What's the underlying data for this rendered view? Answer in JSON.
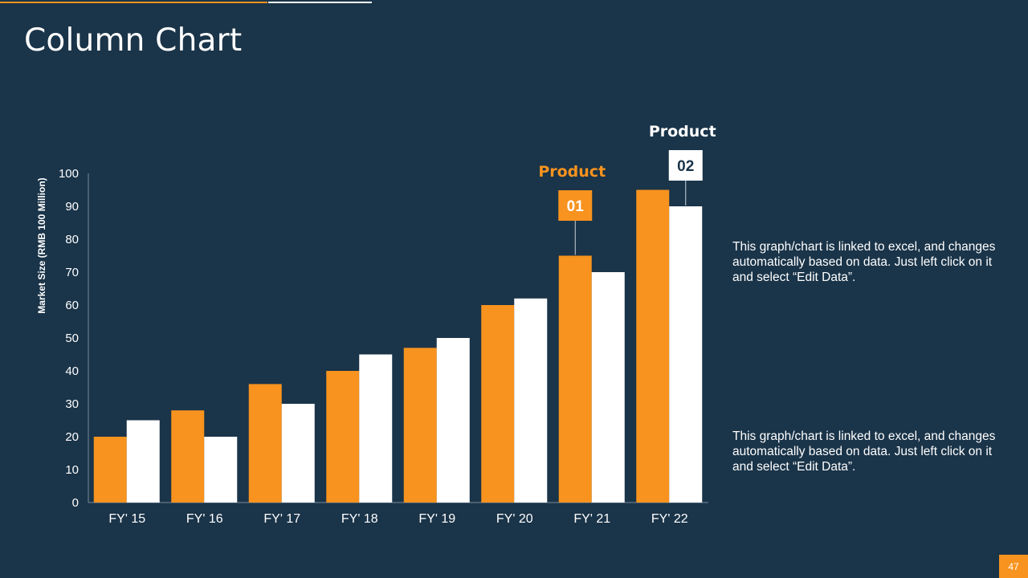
{
  "slide": {
    "title": "Column Chart",
    "page_number": "47"
  },
  "colors": {
    "background": "#1a3449",
    "product_01": "#f7931e",
    "product_02": "#ffffff",
    "axis": "#7a8a99"
  },
  "callouts": [
    {
      "title": "Product",
      "number": "01"
    },
    {
      "title": "Product",
      "number": "02"
    }
  ],
  "captions": [
    "This graph/chart is linked to excel, and changes automatically based on data. Just left click on it and select “Edit Data”.",
    "This graph/chart is linked to excel, and changes automatically based on data. Just left click on it and select “Edit Data”."
  ],
  "chart_data": {
    "type": "bar",
    "title": "",
    "xlabel": "",
    "ylabel": "Market Size (RMB 100 Million)",
    "ylim": [
      0,
      100
    ],
    "yticks": [
      0,
      10,
      20,
      30,
      40,
      50,
      60,
      70,
      80,
      90,
      100
    ],
    "categories": [
      "FY' 15",
      "FY' 16",
      "FY' 17",
      "FY' 18",
      "FY' 19",
      "FY' 20",
      "FY' 21",
      "FY' 22"
    ],
    "series": [
      {
        "values": [
          20,
          28,
          36,
          40,
          47,
          60,
          75,
          95
        ]
      },
      {
        "values": [
          25,
          20,
          30,
          45,
          50,
          62,
          70,
          90
        ]
      }
    ],
    "grid": false,
    "legend": "none"
  }
}
